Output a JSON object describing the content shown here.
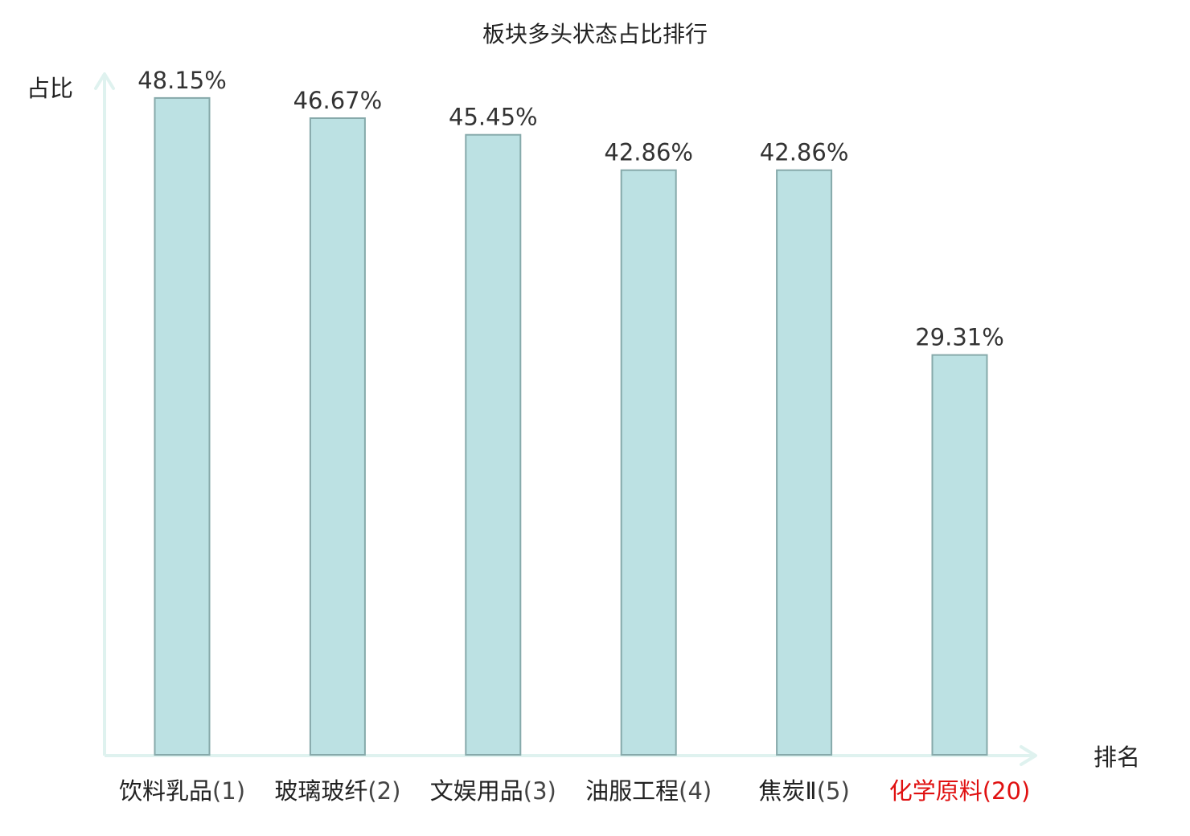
{
  "chart_data": {
    "type": "bar",
    "title": "板块多头状态占比排行",
    "ylabel": "占比",
    "xlabel": "排名",
    "ylim": [
      0,
      50
    ],
    "grid": false,
    "categories": [
      {
        "name": "饮料乳品",
        "rank": "(1)",
        "highlight": false
      },
      {
        "name": "玻璃玻纤",
        "rank": "(2)",
        "highlight": false
      },
      {
        "name": "文娱用品",
        "rank": "(3)",
        "highlight": false
      },
      {
        "name": "油服工程",
        "rank": "(4)",
        "highlight": false
      },
      {
        "name": "焦炭Ⅱ",
        "rank": "(5)",
        "highlight": false
      },
      {
        "name": "化学原料",
        "rank": "(20)",
        "highlight": true
      }
    ],
    "values": [
      48.15,
      46.67,
      45.45,
      42.86,
      42.86,
      29.31
    ],
    "value_labels": [
      "48.15%",
      "46.67%",
      "45.45%",
      "42.86%",
      "42.86%",
      "29.31%"
    ]
  },
  "colors": {
    "bar_fill": "#bce1e3",
    "bar_stroke": "#86a9aa",
    "axis": "#dff2ef",
    "text": "#222222",
    "rank_text": "#444444",
    "highlight": "#e01010"
  }
}
